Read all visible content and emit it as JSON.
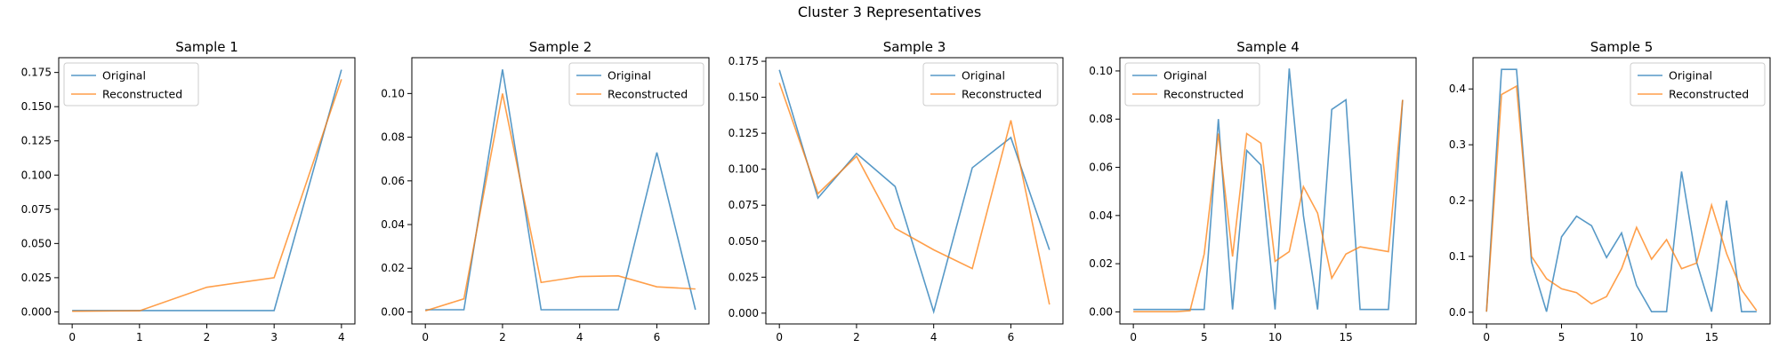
{
  "figure": {
    "suptitle": "Cluster 3 Representatives"
  },
  "colors": {
    "original": "#1f77b4",
    "reconstructed": "#ff7f0e",
    "axes": "#000000",
    "legend_border": "#cccccc"
  },
  "chart_data": [
    {
      "type": "line",
      "title": "Sample 1",
      "xlabel": "",
      "ylabel": "",
      "xlim": [
        -0.2,
        4.2
      ],
      "ylim": [
        -0.0088,
        0.1858
      ],
      "xticks": [
        0,
        1,
        2,
        3,
        4
      ],
      "yticks": [
        0.0,
        0.025,
        0.05,
        0.075,
        0.1,
        0.125,
        0.15,
        0.175
      ],
      "ytick_labels": [
        "0.000",
        "0.025",
        "0.050",
        "0.075",
        "0.100",
        "0.125",
        "0.150",
        "0.175"
      ],
      "grid": false,
      "legend": "upper left",
      "series": [
        {
          "name": "Original",
          "x": [
            0,
            1,
            2,
            3,
            4
          ],
          "values": [
            0.001,
            0.001,
            0.001,
            0.001,
            0.177
          ]
        },
        {
          "name": "Reconstructed",
          "x": [
            0,
            1,
            2,
            3,
            4
          ],
          "values": [
            0.0005,
            0.0008,
            0.018,
            0.025,
            0.17
          ]
        }
      ]
    },
    {
      "type": "line",
      "title": "Sample 2",
      "xlabel": "",
      "ylabel": "",
      "xlim": [
        -0.35,
        7.35
      ],
      "ylim": [
        -0.0055,
        0.1164
      ],
      "xticks": [
        0,
        2,
        4,
        6
      ],
      "yticks": [
        0.0,
        0.02,
        0.04,
        0.06,
        0.08,
        0.1
      ],
      "ytick_labels": [
        "0.00",
        "0.02",
        "0.04",
        "0.06",
        "0.08",
        "0.10"
      ],
      "grid": false,
      "legend": "upper right",
      "series": [
        {
          "name": "Original",
          "x": [
            0,
            1,
            2,
            3,
            4,
            5,
            6,
            7
          ],
          "values": [
            0.001,
            0.001,
            0.111,
            0.001,
            0.001,
            0.001,
            0.073,
            0.001
          ]
        },
        {
          "name": "Reconstructed",
          "x": [
            0,
            1,
            2,
            3,
            4,
            5,
            6,
            7
          ],
          "values": [
            0.0005,
            0.006,
            0.1,
            0.0135,
            0.0162,
            0.0165,
            0.0115,
            0.0105
          ]
        }
      ]
    },
    {
      "type": "line",
      "title": "Sample 3",
      "xlabel": "",
      "ylabel": "",
      "xlim": [
        -0.35,
        7.35
      ],
      "ylim": [
        -0.0075,
        0.1775
      ],
      "xticks": [
        0,
        2,
        4,
        6
      ],
      "yticks": [
        0.0,
        0.025,
        0.05,
        0.075,
        0.1,
        0.125,
        0.15,
        0.175
      ],
      "ytick_labels": [
        "0.000",
        "0.025",
        "0.050",
        "0.075",
        "0.100",
        "0.125",
        "0.150",
        "0.175"
      ],
      "grid": false,
      "legend": "upper right",
      "series": [
        {
          "name": "Original",
          "x": [
            0,
            1,
            2,
            3,
            4,
            5,
            6,
            7
          ],
          "values": [
            0.169,
            0.08,
            0.111,
            0.088,
            0.001,
            0.101,
            0.122,
            0.044
          ]
        },
        {
          "name": "Reconstructed",
          "x": [
            0,
            1,
            2,
            3,
            4,
            5,
            6,
            7
          ],
          "values": [
            0.16,
            0.083,
            0.109,
            0.059,
            0.044,
            0.031,
            0.134,
            0.006
          ]
        }
      ]
    },
    {
      "type": "line",
      "title": "Sample 4",
      "xlabel": "",
      "ylabel": "",
      "xlim": [
        -0.95,
        19.95
      ],
      "ylim": [
        -0.005,
        0.1055
      ],
      "xticks": [
        0,
        5,
        10,
        15
      ],
      "yticks": [
        0.0,
        0.02,
        0.04,
        0.06,
        0.08,
        0.1
      ],
      "ytick_labels": [
        "0.00",
        "0.02",
        "0.04",
        "0.06",
        "0.08",
        "0.10"
      ],
      "grid": false,
      "legend": "upper left",
      "series": [
        {
          "name": "Original",
          "x": [
            0,
            1,
            2,
            3,
            4,
            5,
            6,
            7,
            8,
            9,
            10,
            11,
            12,
            13,
            14,
            15,
            16,
            17,
            18,
            19
          ],
          "values": [
            0.001,
            0.001,
            0.001,
            0.001,
            0.001,
            0.001,
            0.08,
            0.001,
            0.067,
            0.061,
            0.001,
            0.101,
            0.04,
            0.001,
            0.084,
            0.088,
            0.001,
            0.001,
            0.001,
            0.088
          ]
        },
        {
          "name": "Reconstructed",
          "x": [
            0,
            1,
            2,
            3,
            4,
            5,
            6,
            7,
            8,
            9,
            10,
            11,
            12,
            13,
            14,
            15,
            16,
            17,
            18,
            19
          ],
          "values": [
            0.0001,
            0.0001,
            0.0001,
            0.0001,
            0.0005,
            0.024,
            0.074,
            0.023,
            0.074,
            0.07,
            0.021,
            0.025,
            0.052,
            0.041,
            0.014,
            0.024,
            0.027,
            0.026,
            0.025,
            0.088
          ]
        }
      ]
    },
    {
      "type": "line",
      "title": "Sample 5",
      "xlabel": "",
      "ylabel": "",
      "xlim": [
        -0.9,
        18.9
      ],
      "ylim": [
        -0.021,
        0.456
      ],
      "xticks": [
        0,
        5,
        10,
        15
      ],
      "yticks": [
        0.0,
        0.1,
        0.2,
        0.3,
        0.4
      ],
      "ytick_labels": [
        "0.0",
        "0.1",
        "0.2",
        "0.3",
        "0.4"
      ],
      "grid": false,
      "legend": "upper right",
      "series": [
        {
          "name": "Original",
          "x": [
            0,
            1,
            2,
            3,
            4,
            5,
            6,
            7,
            8,
            9,
            10,
            11,
            12,
            13,
            14,
            15,
            16,
            17,
            18
          ],
          "values": [
            0.001,
            0.435,
            0.435,
            0.09,
            0.001,
            0.135,
            0.172,
            0.155,
            0.098,
            0.142,
            0.048,
            0.001,
            0.001,
            0.252,
            0.09,
            0.001,
            0.2,
            0.001,
            0.001
          ]
        },
        {
          "name": "Reconstructed",
          "x": [
            0,
            1,
            2,
            3,
            4,
            5,
            6,
            7,
            8,
            9,
            10,
            11,
            12,
            13,
            14,
            15,
            16,
            17,
            18
          ],
          "values": [
            0.001,
            0.39,
            0.405,
            0.1,
            0.06,
            0.042,
            0.035,
            0.015,
            0.028,
            0.078,
            0.152,
            0.095,
            0.13,
            0.078,
            0.088,
            0.192,
            0.105,
            0.04,
            0.003
          ]
        }
      ]
    }
  ]
}
